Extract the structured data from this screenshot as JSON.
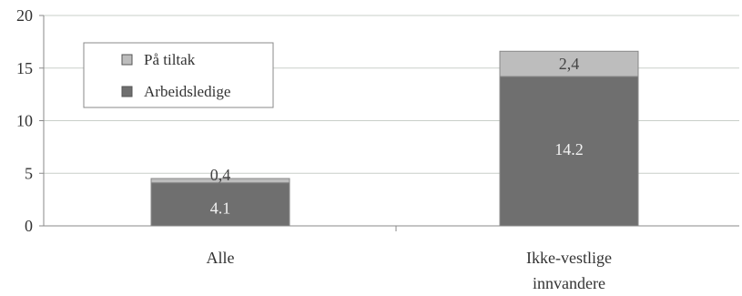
{
  "chart_data": {
    "type": "bar",
    "stacked": true,
    "categories": [
      "Alle",
      "Ikke-vestlige innvandere"
    ],
    "series": [
      {
        "name": "Arbeidsledige",
        "values": [
          4.1,
          14.2
        ],
        "labels": [
          "4.1",
          "14.2"
        ],
        "color": "#6f6f6f"
      },
      {
        "name": "På tiltak",
        "values": [
          0.4,
          2.4
        ],
        "labels": [
          "0,4",
          "2,4"
        ],
        "color": "#bdbdbd"
      }
    ],
    "ylim": [
      0,
      20
    ],
    "yticks": [
      "0",
      "5",
      "10",
      "15",
      "20"
    ],
    "grid": true,
    "legend_position": "top-left",
    "title": "",
    "xlabel": "",
    "ylabel": ""
  },
  "colors": {
    "grid": "#c9cfc9",
    "axis": "#8a8a8a",
    "text": "#333333",
    "label_light": "#f2f2f2"
  }
}
